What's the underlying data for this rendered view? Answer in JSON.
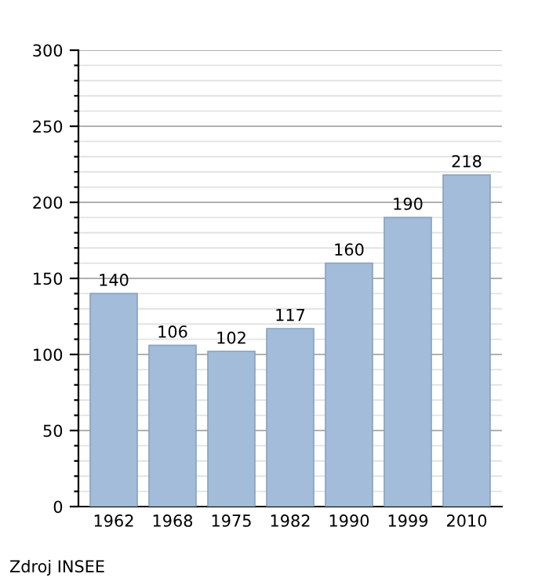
{
  "chart_data": {
    "type": "bar",
    "categories": [
      "1962",
      "1968",
      "1975",
      "1982",
      "1990",
      "1999",
      "2010"
    ],
    "values": [
      140,
      106,
      102,
      117,
      160,
      190,
      218
    ],
    "color": "#a3bcd9",
    "data_labels": true,
    "ylim": [
      0,
      300
    ],
    "yticks": [
      0,
      {
        "value": 10,
        "label": null
      },
      {
        "value": 20,
        "label": null
      },
      {
        "value": 30,
        "label": null
      },
      {
        "value": 40,
        "label": null
      },
      50,
      {
        "value": 60,
        "label": null
      },
      {
        "value": 70,
        "label": null
      },
      {
        "value": 80,
        "label": null
      },
      {
        "value": 90,
        "label": null
      },
      100,
      {
        "value": 110,
        "label": null
      },
      {
        "value": 120,
        "label": null
      },
      {
        "value": 130,
        "label": null
      },
      {
        "value": 140,
        "label": null
      },
      150,
      {
        "value": 160,
        "label": null
      },
      {
        "value": 170,
        "label": null
      },
      {
        "value": 180,
        "label": null
      },
      {
        "value": 190,
        "label": null
      },
      200,
      {
        "value": 210,
        "label": null
      },
      {
        "value": 220,
        "label": null
      },
      {
        "value": 230,
        "label": null
      },
      {
        "value": 240,
        "label": null
      },
      250,
      {
        "value": 260,
        "label": null
      },
      {
        "value": 270,
        "label": null
      },
      {
        "value": 280,
        "label": null
      },
      {
        "value": 290,
        "label": null
      },
      300
    ],
    "grid": "y",
    "annotations": [
      "Zdroj INSEE"
    ]
  }
}
